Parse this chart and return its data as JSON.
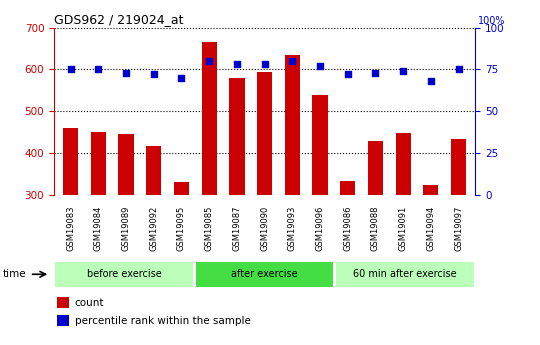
{
  "title": "GDS962 / 219024_at",
  "categories": [
    "GSM19083",
    "GSM19084",
    "GSM19089",
    "GSM19092",
    "GSM19095",
    "GSM19085",
    "GSM19087",
    "GSM19090",
    "GSM19093",
    "GSM19096",
    "GSM19086",
    "GSM19088",
    "GSM19091",
    "GSM19094",
    "GSM19097"
  ],
  "bar_values": [
    460,
    450,
    445,
    418,
    330,
    665,
    580,
    595,
    635,
    540,
    333,
    428,
    448,
    323,
    433
  ],
  "dot_values": [
    75,
    75,
    73,
    72,
    70,
    80,
    78,
    78,
    80,
    77,
    72,
    73,
    74,
    68,
    75
  ],
  "bar_bottom": 300,
  "ylim_left": [
    300,
    700
  ],
  "ylim_right": [
    0,
    100
  ],
  "yticks_left": [
    300,
    400,
    500,
    600,
    700
  ],
  "yticks_right": [
    0,
    25,
    50,
    75,
    100
  ],
  "bar_color": "#cc0000",
  "dot_color": "#0000cc",
  "groups": [
    {
      "label": "before exercise",
      "start": 0,
      "end": 5,
      "color": "#bbffbb"
    },
    {
      "label": "after exercise",
      "start": 5,
      "end": 10,
      "color": "#44dd44"
    },
    {
      "label": "60 min after exercise",
      "start": 10,
      "end": 15,
      "color": "#bbffbb"
    }
  ],
  "background_color": "#ffffff",
  "plot_bg_color": "#ffffff",
  "tick_label_bg": "#cccccc",
  "left_axis_color": "#cc0000",
  "right_axis_color": "#0000cc",
  "legend_items": [
    {
      "label": "count",
      "color": "#cc0000"
    },
    {
      "label": "percentile rank within the sample",
      "color": "#0000cc"
    }
  ],
  "time_label": "time",
  "right_axis_label": "100%"
}
